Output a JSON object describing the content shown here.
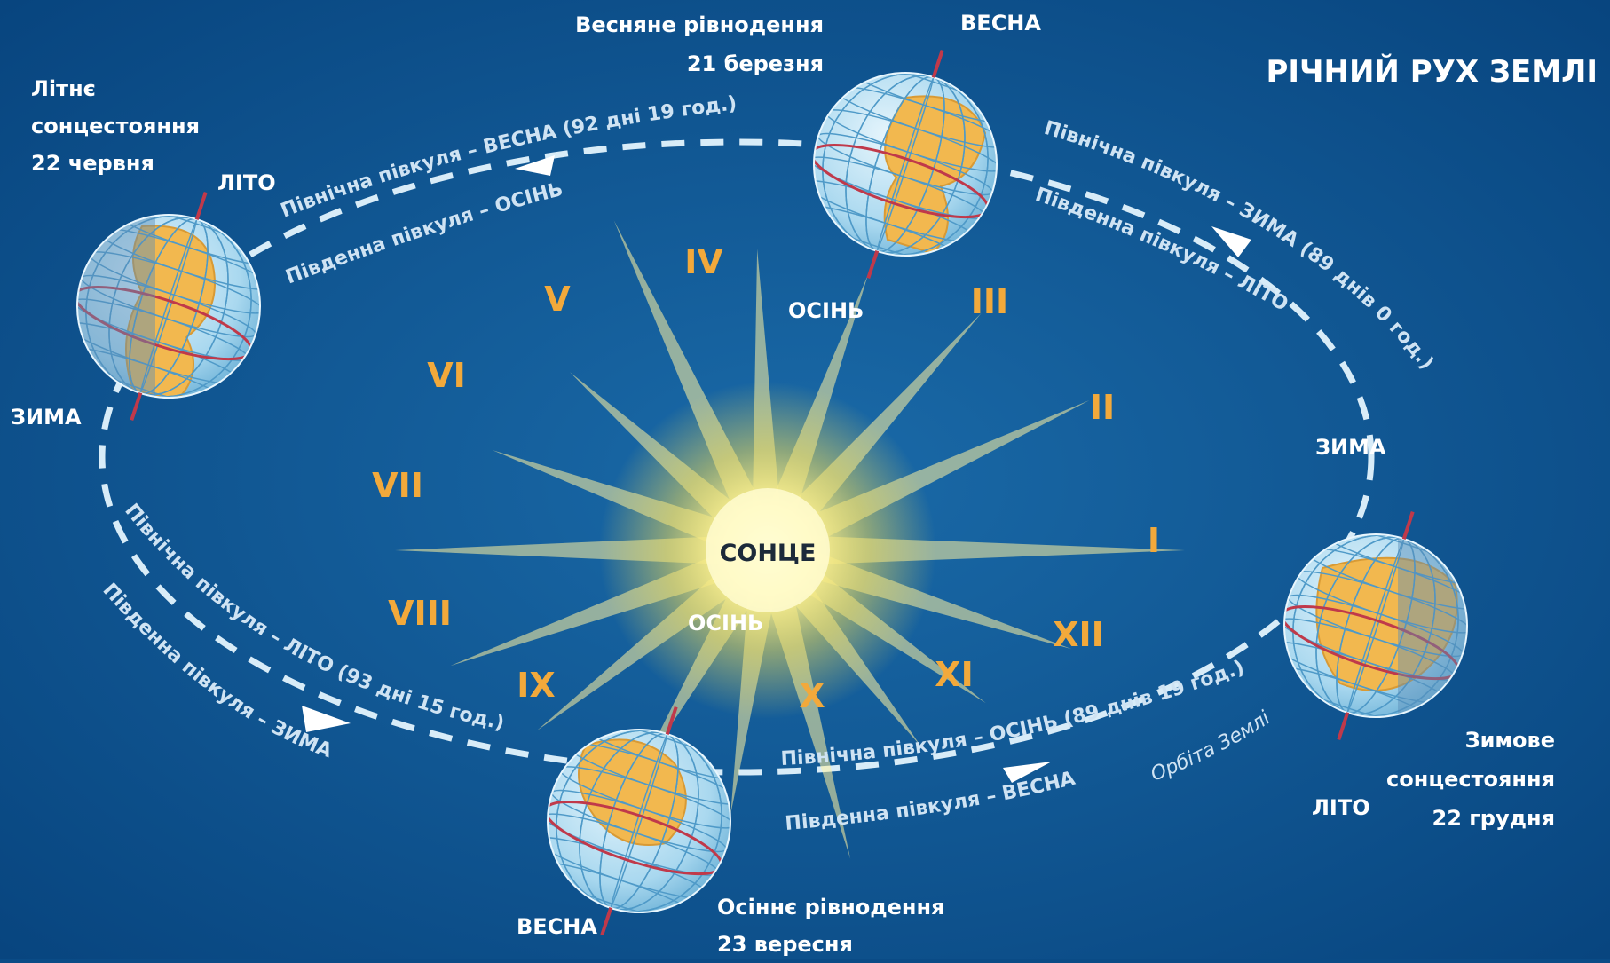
{
  "title": "РІЧНИЙ РУХ ЗЕМЛІ",
  "sun_label": "СОНЦЕ",
  "orbit_label": "Орбіта Землі",
  "months": [
    "I",
    "II",
    "III",
    "IV",
    "V",
    "VI",
    "VII",
    "VIII",
    "IX",
    "X",
    "XI",
    "XII"
  ],
  "positions": {
    "summer": {
      "line1": "Літнє",
      "line2": "сонцестояння",
      "date": "22 червня",
      "top": "ЛІТО",
      "bottom": "ЗИМА"
    },
    "spring": {
      "line1": "Весняне рівнодення",
      "date": "21 березня",
      "top": "ВЕСНА",
      "bottom": "ОСІНЬ"
    },
    "winter": {
      "line1": "Зимове",
      "line2": "сонцестояння",
      "date": "22 грудня",
      "top": "ЗИМА",
      "bottom": "ЛІТО"
    },
    "autumn": {
      "line1": "Осіннє рівнодення",
      "date": "23 вересня",
      "top": "ОСІНЬ",
      "bottom": "ВЕСНА"
    }
  },
  "arcs": {
    "top": {
      "north": "Північна півкуля – ВЕСНА (92 дні 19 год.)",
      "south": "Південна півкуля – ОСІНЬ"
    },
    "right": {
      "north": "Північна півкуля – ЗИМА (89 днів 0 год.)",
      "south": "Південна півкуля – ЛІТО"
    },
    "left": {
      "north": "Північна півкуля – ЛІТО (93 дні 15 год.)",
      "south": "Південна півкуля – ЗИМА"
    },
    "bottom": {
      "north": "Північна півкуля – ОСІНЬ (89 днів 19 год.)",
      "south": "Південна півкуля – ВЕСНА"
    }
  },
  "colors": {
    "background": "#0a4b86",
    "accent": "#f2a93b",
    "sun": "#fff6a0",
    "ocean": "#bfe3f5",
    "land": "#f2b84f",
    "equator": "#c0394a"
  }
}
